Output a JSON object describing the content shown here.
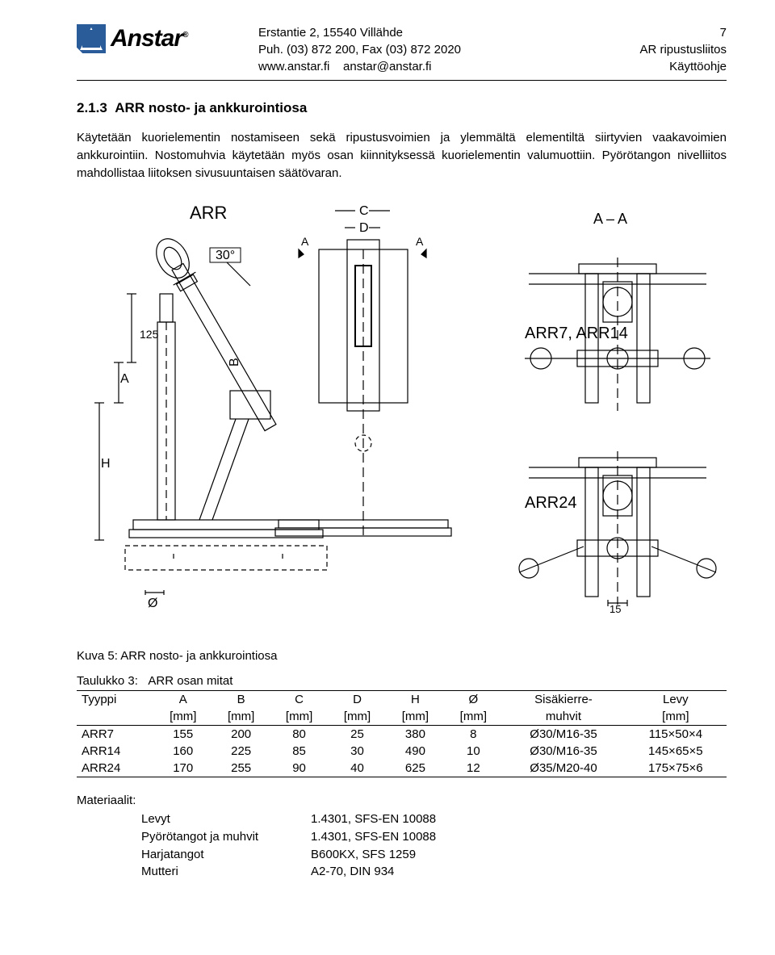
{
  "header": {
    "company": "Anstar",
    "address_line": "Erstantie 2, 15540 Villähde",
    "phone_line": "Puh. (03) 872 200, Fax (03) 872 2020",
    "web": "www.anstar.fi",
    "email": "anstar@anstar.fi",
    "page_no": "7",
    "doc1": "AR ripustusliitos",
    "doc2": "Käyttöohje"
  },
  "section": {
    "number": "2.1.3",
    "title": "ARR nosto- ja ankkurointiosa",
    "para": "Käytetään kuorielementin nostamiseen sekä ripustusvoimien ja ylemmältä elementiltä siirtyvien vaakavoimien ankkurointiin. Nostomuhvia käytetään myös osan kiinnityksessä kuorielementin valumuottiin. Pyörötangon nivelliitos mahdollistaa liitoksen sivusuuntaisen säätövaran."
  },
  "figure": {
    "main_label": "ARR",
    "sec_A": "A – A",
    "angle": "30°",
    "dim_125": "125",
    "dim_15": "15",
    "label_arr7_14": "ARR7, ARR14",
    "label_arr24": "ARR24",
    "sym_A1": "A",
    "sym_A2": "A",
    "sym_B": "B",
    "sym_C": "C",
    "sym_D": "D",
    "sym_H": "H",
    "sym_O": "Ø",
    "sym_Adim": "A",
    "caption": "Kuva 5:  ARR nosto- ja ankkurointiosa"
  },
  "table": {
    "title_prefix": "Taulukko 3:",
    "title_text": "ARR osan mitat",
    "cols": [
      "Tyyppi",
      "A",
      "B",
      "C",
      "D",
      "H",
      "Ø",
      "Sisäkierre-",
      "Levy"
    ],
    "units": [
      "",
      "[mm]",
      "[mm]",
      "[mm]",
      "[mm]",
      "[mm]",
      "[mm]",
      "muhvit",
      "[mm]"
    ],
    "rows": [
      [
        "ARR7",
        "155",
        "200",
        "80",
        "25",
        "380",
        "8",
        "Ø30/M16-35",
        "115×50×4"
      ],
      [
        "ARR14",
        "160",
        "225",
        "85",
        "30",
        "490",
        "10",
        "Ø30/M16-35",
        "145×65×5"
      ],
      [
        "ARR24",
        "170",
        "255",
        "90",
        "40",
        "625",
        "12",
        "Ø35/M20-40",
        "175×75×6"
      ]
    ]
  },
  "materials": {
    "head": "Materiaalit:",
    "rows": [
      [
        "Levyt",
        "1.4301, SFS-EN 10088"
      ],
      [
        "Pyörötangot ja muhvit",
        "1.4301, SFS-EN 10088"
      ],
      [
        "Harjatangot",
        "B600KX, SFS 1259"
      ],
      [
        "Mutteri",
        "A2-70, DIN 934"
      ]
    ]
  }
}
